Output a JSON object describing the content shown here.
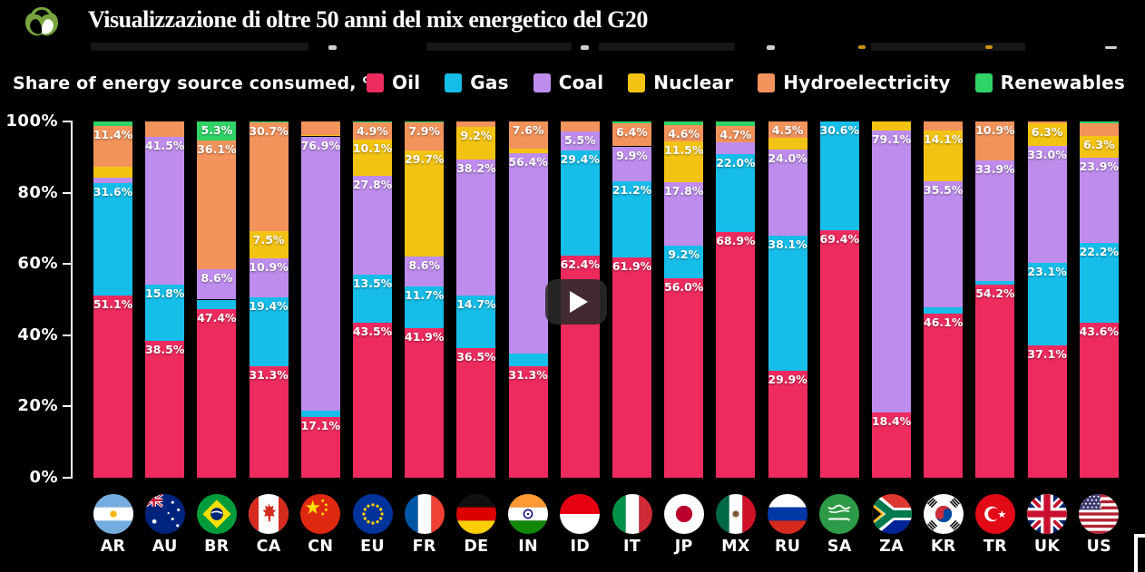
{
  "header": {
    "title": "Visualizzazione di oltre 50 anni del mix energetico del G20",
    "logo": "green-animals-logo"
  },
  "video": {
    "play_button": "play-icon"
  },
  "chart_data": {
    "type": "bar",
    "stacked": true,
    "subtitle": "Share of energy source consumed, %",
    "ylim": [
      0,
      100
    ],
    "grid": false,
    "legend_position": "top-right",
    "y_ticks": [
      {
        "value": 0,
        "label": "0%"
      },
      {
        "value": 20,
        "label": "20%"
      },
      {
        "value": 40,
        "label": "40%"
      },
      {
        "value": 60,
        "label": "60%"
      },
      {
        "value": 80,
        "label": "80%"
      },
      {
        "value": 100,
        "label": "100%"
      }
    ],
    "label_min_value": 4.4,
    "categories": [
      "AR",
      "AU",
      "BR",
      "CA",
      "CN",
      "EU",
      "FR",
      "DE",
      "IN",
      "ID",
      "IT",
      "JP",
      "MX",
      "RU",
      "SA",
      "ZA",
      "KR",
      "TR",
      "UK",
      "US"
    ],
    "series": [
      {
        "name": "Oil",
        "color": "#ED2B5F",
        "values": [
          51.1,
          38.5,
          47.4,
          31.3,
          17.1,
          43.5,
          41.9,
          36.5,
          31.3,
          62.4,
          61.9,
          56.0,
          68.9,
          29.9,
          69.4,
          18.4,
          46.1,
          54.2,
          37.1,
          43.6
        ]
      },
      {
        "name": "Gas",
        "color": "#16BDE9",
        "values": [
          31.6,
          15.8,
          2.6,
          19.4,
          1.8,
          13.5,
          11.7,
          14.7,
          3.5,
          29.4,
          21.2,
          9.2,
          22.0,
          38.1,
          30.6,
          0.0,
          1.7,
          1.0,
          23.1,
          22.2
        ]
      },
      {
        "name": "Coal",
        "color": "#BE8CEC",
        "values": [
          1.5,
          41.5,
          8.6,
          10.9,
          76.9,
          27.8,
          8.6,
          38.2,
          56.4,
          5.5,
          9.9,
          17.8,
          3.2,
          24.0,
          0.0,
          79.1,
          35.5,
          33.9,
          33.0,
          23.9
        ]
      },
      {
        "name": "Nuclear",
        "color": "#F3C313",
        "values": [
          3.2,
          0.0,
          0.0,
          7.5,
          0.4,
          10.1,
          29.7,
          9.2,
          1.2,
          0.0,
          0.0,
          11.5,
          0.0,
          3.5,
          0.0,
          2.5,
          14.1,
          0.0,
          6.3,
          6.3
        ]
      },
      {
        "name": "Hydroelectricity",
        "color": "#F2935C",
        "values": [
          11.4,
          4.2,
          36.1,
          30.7,
          3.8,
          4.9,
          7.9,
          1.4,
          7.6,
          2.7,
          6.4,
          4.6,
          4.7,
          4.5,
          0.0,
          0.0,
          2.6,
          10.9,
          0.5,
          3.5
        ]
      },
      {
        "name": "Renewables",
        "color": "#2FD366",
        "values": [
          1.2,
          0.0,
          5.3,
          0.2,
          0.0,
          0.2,
          0.2,
          0.0,
          0.0,
          0.0,
          0.6,
          0.9,
          1.2,
          0.0,
          0.0,
          0.0,
          0.0,
          0.0,
          0.0,
          0.5
        ]
      }
    ]
  }
}
